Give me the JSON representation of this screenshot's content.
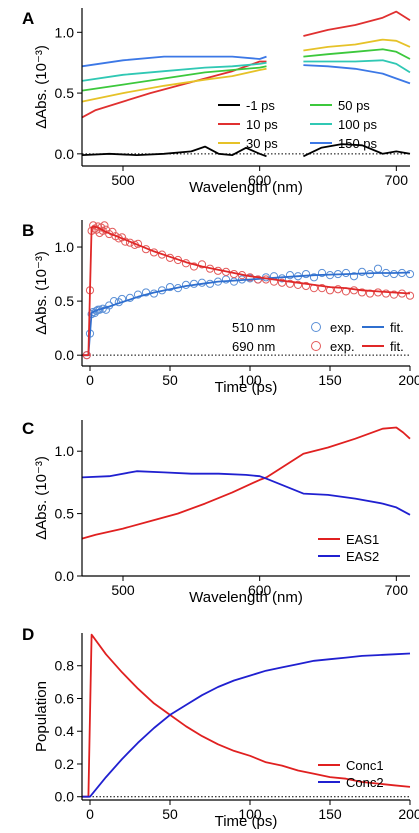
{
  "chart_data": [
    {
      "panel": "A",
      "type": "line",
      "xlabel": "Wavelength (nm)",
      "ylabel": "ΔAbs. (10⁻³)",
      "xlim": [
        470,
        710
      ],
      "ylim": [
        -0.1,
        1.2
      ],
      "xticks": [
        500,
        600,
        700
      ],
      "yticks": [
        0.0,
        0.5,
        1.0
      ],
      "gap": [
        605,
        632
      ],
      "legend": "bottom-right",
      "series": [
        {
          "name": "-1 ps",
          "color": "#000000",
          "x": [
            470,
            490,
            510,
            530,
            550,
            560,
            570,
            580,
            590,
            600,
            605,
            632,
            645,
            660,
            675,
            690,
            700,
            710
          ],
          "y": [
            -0.01,
            0.0,
            -0.01,
            0.0,
            0.02,
            0.06,
            0.0,
            -0.01,
            0.05,
            0.0,
            -0.02,
            -0.02,
            0.05,
            0.08,
            0.07,
            0.0,
            0.02,
            0.0
          ]
        },
        {
          "name": "10 ps",
          "color": "#e03030",
          "x": [
            470,
            480,
            500,
            520,
            540,
            560,
            580,
            600,
            605,
            632,
            650,
            670,
            690,
            700,
            710
          ],
          "y": [
            0.3,
            0.36,
            0.43,
            0.5,
            0.56,
            0.62,
            0.68,
            0.76,
            0.76,
            0.97,
            1.02,
            1.06,
            1.12,
            1.17,
            1.1
          ]
        },
        {
          "name": "30 ps",
          "color": "#e6c228",
          "x": [
            470,
            500,
            530,
            560,
            580,
            600,
            605,
            632,
            650,
            670,
            690,
            700,
            710
          ],
          "y": [
            0.43,
            0.5,
            0.56,
            0.61,
            0.64,
            0.69,
            0.7,
            0.85,
            0.88,
            0.9,
            0.94,
            0.93,
            0.88
          ]
        },
        {
          "name": "50 ps",
          "color": "#3cc83c",
          "x": [
            470,
            500,
            530,
            560,
            580,
            600,
            605,
            632,
            650,
            670,
            690,
            700,
            710
          ],
          "y": [
            0.52,
            0.57,
            0.62,
            0.67,
            0.69,
            0.71,
            0.72,
            0.8,
            0.82,
            0.84,
            0.86,
            0.84,
            0.78
          ]
        },
        {
          "name": "100 ps",
          "color": "#30c8b4",
          "x": [
            470,
            500,
            530,
            560,
            580,
            600,
            605,
            632,
            650,
            670,
            690,
            700,
            710
          ],
          "y": [
            0.6,
            0.65,
            0.68,
            0.71,
            0.72,
            0.74,
            0.75,
            0.76,
            0.76,
            0.76,
            0.77,
            0.74,
            0.67
          ]
        },
        {
          "name": "150 ps",
          "color": "#3c78e6",
          "x": [
            470,
            500,
            530,
            560,
            580,
            600,
            605,
            632,
            650,
            670,
            690,
            700,
            710
          ],
          "y": [
            0.72,
            0.77,
            0.8,
            0.8,
            0.8,
            0.78,
            0.8,
            0.73,
            0.72,
            0.7,
            0.66,
            0.62,
            0.58
          ]
        }
      ]
    },
    {
      "panel": "B",
      "type": "scatter",
      "xlabel": "Time (ps)",
      "ylabel": "ΔAbs. (10⁻³)",
      "xlim": [
        -5,
        200
      ],
      "ylim": [
        -0.1,
        1.25
      ],
      "xticks": [
        0,
        50,
        100,
        150,
        200
      ],
      "yticks": [
        0.0,
        0.5,
        1.0
      ],
      "legend": "bottom-right",
      "legend_labels": {
        "exp": "exp.",
        "fit": "fit."
      },
      "series": [
        {
          "name": "510 nm",
          "color": "#5a8fd6",
          "x": [
            -2,
            0,
            1,
            2,
            3,
            4,
            5,
            6,
            8,
            10,
            12,
            15,
            18,
            20,
            25,
            30,
            35,
            40,
            45,
            50,
            55,
            60,
            65,
            70,
            75,
            80,
            85,
            90,
            95,
            100,
            105,
            110,
            115,
            120,
            125,
            130,
            135,
            140,
            145,
            150,
            155,
            160,
            165,
            170,
            175,
            180,
            185,
            190,
            195,
            200
          ],
          "y": [
            0.0,
            0.2,
            0.38,
            0.4,
            0.39,
            0.41,
            0.42,
            0.42,
            0.43,
            0.42,
            0.46,
            0.5,
            0.49,
            0.52,
            0.53,
            0.56,
            0.58,
            0.57,
            0.6,
            0.63,
            0.62,
            0.65,
            0.66,
            0.67,
            0.66,
            0.68,
            0.7,
            0.68,
            0.7,
            0.71,
            0.7,
            0.72,
            0.73,
            0.71,
            0.74,
            0.73,
            0.75,
            0.72,
            0.76,
            0.74,
            0.75,
            0.76,
            0.73,
            0.77,
            0.75,
            0.8,
            0.76,
            0.75,
            0.76,
            0.75
          ]
        },
        {
          "name": "690 nm",
          "color": "#e35a5a",
          "x": [
            -2,
            0,
            1,
            2,
            3,
            4,
            5,
            6,
            7,
            8,
            9,
            10,
            12,
            14,
            16,
            18,
            20,
            22,
            25,
            28,
            30,
            35,
            40,
            45,
            50,
            55,
            60,
            65,
            70,
            75,
            80,
            85,
            90,
            95,
            100,
            105,
            110,
            115,
            120,
            125,
            130,
            135,
            140,
            145,
            150,
            155,
            160,
            165,
            170,
            175,
            180,
            185,
            190,
            195,
            200
          ],
          "y": [
            0.0,
            0.6,
            1.15,
            1.2,
            1.17,
            1.16,
            1.19,
            1.13,
            1.18,
            1.15,
            1.2,
            1.16,
            1.12,
            1.14,
            1.1,
            1.08,
            1.09,
            1.05,
            1.04,
            1.02,
            1.03,
            0.98,
            0.95,
            0.93,
            0.9,
            0.88,
            0.85,
            0.82,
            0.84,
            0.8,
            0.78,
            0.77,
            0.75,
            0.74,
            0.72,
            0.7,
            0.7,
            0.68,
            0.67,
            0.66,
            0.65,
            0.64,
            0.62,
            0.62,
            0.6,
            0.61,
            0.59,
            0.6,
            0.58,
            0.57,
            0.58,
            0.57,
            0.56,
            0.57,
            0.55
          ]
        },
        {
          "name": "510 nm fit",
          "color": "#2f6fcf",
          "kind": "fit",
          "x": [
            -5,
            -1,
            0,
            1,
            2,
            5,
            10,
            20,
            30,
            40,
            50,
            60,
            70,
            80,
            90,
            100,
            110,
            120,
            130,
            140,
            150,
            160,
            170,
            180,
            190,
            200
          ],
          "y": [
            0.0,
            0.0,
            0.2,
            0.39,
            0.4,
            0.42,
            0.44,
            0.49,
            0.54,
            0.58,
            0.61,
            0.64,
            0.66,
            0.68,
            0.69,
            0.7,
            0.71,
            0.72,
            0.73,
            0.74,
            0.745,
            0.75,
            0.755,
            0.76,
            0.76,
            0.765
          ]
        },
        {
          "name": "690 nm fit",
          "color": "#e02828",
          "kind": "fit",
          "x": [
            -5,
            -1,
            0,
            1,
            2,
            5,
            10,
            20,
            30,
            40,
            50,
            60,
            70,
            80,
            90,
            100,
            110,
            120,
            130,
            140,
            150,
            160,
            170,
            180,
            190,
            200
          ],
          "y": [
            0.0,
            0.0,
            0.6,
            1.18,
            1.19,
            1.18,
            1.14,
            1.08,
            1.02,
            0.96,
            0.91,
            0.86,
            0.82,
            0.79,
            0.76,
            0.73,
            0.71,
            0.69,
            0.67,
            0.65,
            0.63,
            0.62,
            0.6,
            0.59,
            0.58,
            0.57
          ]
        }
      ]
    },
    {
      "panel": "C",
      "type": "line",
      "xlabel": "Wavelength (nm)",
      "ylabel": "ΔAbs. (10⁻³)",
      "xlim": [
        470,
        710
      ],
      "ylim": [
        0.0,
        1.25
      ],
      "xticks": [
        500,
        600,
        700
      ],
      "yticks": [
        0.0,
        0.5,
        1.0
      ],
      "legend": "bottom-right",
      "series": [
        {
          "name": "EAS1",
          "color": "#e02020",
          "x": [
            470,
            480,
            500,
            520,
            540,
            560,
            580,
            600,
            605,
            632,
            650,
            670,
            690,
            700,
            705,
            710
          ],
          "y": [
            0.3,
            0.33,
            0.38,
            0.44,
            0.5,
            0.58,
            0.67,
            0.77,
            0.79,
            0.98,
            1.03,
            1.1,
            1.18,
            1.19,
            1.15,
            1.1
          ]
        },
        {
          "name": "EAS2",
          "color": "#2020d0",
          "x": [
            470,
            490,
            510,
            530,
            550,
            570,
            590,
            600,
            605,
            632,
            650,
            670,
            690,
            700,
            710
          ],
          "y": [
            0.79,
            0.8,
            0.84,
            0.83,
            0.82,
            0.82,
            0.81,
            0.8,
            0.78,
            0.66,
            0.65,
            0.62,
            0.58,
            0.55,
            0.49
          ]
        }
      ]
    },
    {
      "panel": "D",
      "type": "line",
      "xlabel": "Time (ps)",
      "ylabel": "Population",
      "xlim": [
        -5,
        200
      ],
      "ylim": [
        -0.02,
        1.0
      ],
      "xticks": [
        0,
        50,
        100,
        150,
        200
      ],
      "yticks": [
        0.0,
        0.2,
        0.4,
        0.6,
        0.8
      ],
      "legend": "bottom-right",
      "series": [
        {
          "name": "Conc1",
          "color": "#e02020",
          "x": [
            -5,
            -1,
            0,
            1,
            10,
            20,
            30,
            40,
            50,
            60,
            70,
            80,
            90,
            100,
            110,
            120,
            130,
            140,
            150,
            160,
            170,
            180,
            190,
            200
          ],
          "y": [
            0.0,
            0.0,
            0.5,
            0.99,
            0.87,
            0.76,
            0.66,
            0.57,
            0.5,
            0.43,
            0.37,
            0.32,
            0.28,
            0.25,
            0.21,
            0.19,
            0.16,
            0.14,
            0.12,
            0.11,
            0.09,
            0.08,
            0.07,
            0.06
          ]
        },
        {
          "name": "Conc2",
          "color": "#2020d0",
          "x": [
            -5,
            0,
            10,
            20,
            30,
            40,
            50,
            60,
            70,
            80,
            90,
            100,
            110,
            120,
            130,
            140,
            150,
            160,
            170,
            180,
            190,
            200
          ],
          "y": [
            0.0,
            0.0,
            0.12,
            0.23,
            0.33,
            0.42,
            0.5,
            0.56,
            0.62,
            0.67,
            0.71,
            0.74,
            0.77,
            0.79,
            0.81,
            0.83,
            0.84,
            0.85,
            0.86,
            0.865,
            0.87,
            0.875
          ]
        }
      ]
    }
  ]
}
